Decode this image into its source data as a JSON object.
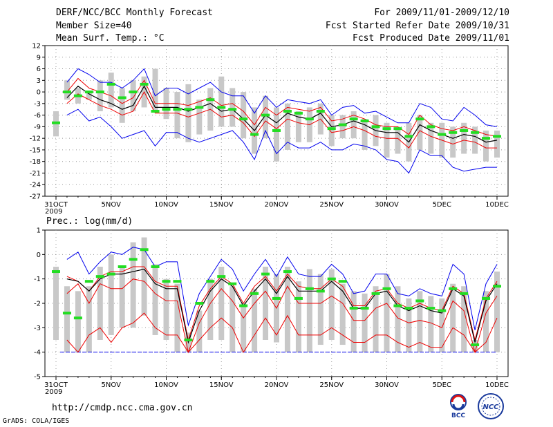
{
  "header": {
    "title": "DERF/NCC/BCC Monthly Forecast",
    "member_size": "Member Size=40",
    "variable": "Mean Surf. Temp.: °C",
    "forecast_period": "For 2009/11/01-2009/12/10",
    "start_date": "Fcst Started Refer Date 2009/10/31",
    "produced_date": "Fcst Produced Date 2009/11/01"
  },
  "footer": {
    "url": "http://cmdp.ncc.cma.gov.cn",
    "credit": "GrADS: COLA/IGES",
    "logo_left_text": "BCC",
    "logo_right_text": "NCC"
  },
  "colors": {
    "spread_bar": "#c8c8c8",
    "envelope": "#0000ee",
    "inner_band": "#ee0000",
    "mean": "#000000",
    "observed": "#22dd22",
    "floor_line": "#0000ee"
  },
  "x_axis": {
    "days": 41,
    "tick_labels": [
      {
        "day": 0,
        "label": "31OCT",
        "sub": "2009"
      },
      {
        "day": 5,
        "label": "5NOV"
      },
      {
        "day": 10,
        "label": "10NOV"
      },
      {
        "day": 15,
        "label": "15NOV"
      },
      {
        "day": 20,
        "label": "20NOV"
      },
      {
        "day": 25,
        "label": "25NOV"
      },
      {
        "day": 30,
        "label": "30NOV"
      },
      {
        "day": 35,
        "label": "5DEC"
      },
      {
        "day": 40,
        "label": "10DEC"
      }
    ]
  },
  "chart_data": [
    {
      "type": "line",
      "title": "Mean Surf. Temp.: °C",
      "ylim": [
        -27,
        12
      ],
      "yticks": [
        12,
        9,
        6,
        3,
        0,
        -3,
        -6,
        -9,
        -12,
        -15,
        -18,
        -21,
        -24,
        -27
      ],
      "x": [
        0,
        1,
        2,
        3,
        4,
        5,
        6,
        7,
        8,
        9,
        10,
        11,
        12,
        13,
        14,
        15,
        16,
        17,
        18,
        19,
        20,
        21,
        22,
        23,
        24,
        25,
        26,
        27,
        28,
        29,
        30,
        31,
        32,
        33,
        34,
        35,
        36,
        37,
        38,
        39,
        40
      ],
      "bar_low": [
        -11.5,
        -2,
        -3,
        -2,
        -5,
        -4,
        -8,
        -5,
        -4,
        -5,
        -7,
        -12,
        -13,
        -11,
        -10,
        -9,
        -9,
        -12,
        -16,
        -12,
        -18,
        -15,
        -13,
        -13,
        -11,
        -14,
        -12,
        -12,
        -15,
        -14,
        -17,
        -16,
        -18,
        -15,
        -16,
        -17,
        -17,
        -16,
        -16,
        -18,
        -17
      ],
      "bar_high": [
        -5,
        3,
        1,
        0,
        3,
        5,
        1,
        3,
        4,
        6,
        1,
        0,
        2,
        -2,
        1,
        4,
        1,
        0,
        -4,
        -1,
        -4,
        -3,
        -5,
        -4,
        -3,
        -6,
        -6,
        -5,
        -7,
        -6,
        -8,
        -9,
        -8,
        -6,
        -8,
        -8,
        -9,
        -8,
        -9,
        -10,
        -10
      ],
      "envelope_high": [
        null,
        2.5,
        6,
        4.5,
        2.5,
        2.5,
        1,
        3,
        6,
        -1,
        1,
        1,
        -0.5,
        1,
        2.5,
        0,
        -1,
        -1,
        -5.5,
        -1,
        -4,
        -2,
        -2.5,
        -3,
        -2,
        -6,
        -4,
        -3.5,
        -5.5,
        -5,
        -6.5,
        -8,
        -8,
        -3,
        -4,
        -7,
        -7.5,
        -4,
        -6,
        -8.5,
        -9
      ],
      "envelope_low": [
        null,
        -6,
        -4.5,
        -7.5,
        -6.5,
        -9,
        -12,
        -11,
        -10,
        -14,
        -10.5,
        -10.5,
        -12,
        -13,
        -12,
        -11,
        -10,
        -13,
        -17.5,
        -10,
        -16,
        -13,
        -14.5,
        -14.5,
        -13,
        -15,
        -15,
        -13.5,
        -14,
        -15,
        -17.5,
        -18,
        -21,
        -15,
        -16.5,
        -16.5,
        -19.5,
        -20.5,
        -20,
        -19.5,
        -19.5
      ],
      "upper_band": [
        null,
        0,
        3.5,
        1,
        0,
        -1,
        -3,
        -1.5,
        3,
        -3,
        -3,
        -3,
        -3.5,
        -2.5,
        -1.5,
        -3.5,
        -3,
        -5,
        -8.5,
        -4,
        -6,
        -4,
        -4.5,
        -5,
        -4,
        -7.5,
        -7,
        -6,
        -7,
        -8.5,
        -9,
        -9,
        -11,
        -6,
        -8.5,
        -9.5,
        -10,
        -9,
        -10,
        -11,
        -11.5
      ],
      "mean": [
        null,
        -1.5,
        1.5,
        -0.5,
        -2,
        -3,
        -4.5,
        -3.5,
        1.5,
        -4,
        -4,
        -4,
        -5,
        -4,
        -3,
        -5,
        -4.5,
        -7,
        -10,
        -6,
        -8,
        -5.5,
        -6.5,
        -7,
        -5.5,
        -9,
        -8.5,
        -7.5,
        -8.5,
        -10,
        -10.5,
        -10.5,
        -13,
        -8.5,
        -10,
        -11,
        -12,
        -11,
        -11.5,
        -13,
        -12.5
      ],
      "lower_band": [
        null,
        -3,
        -0.5,
        -2,
        -3.5,
        -4.5,
        -6,
        -5,
        0,
        -5.5,
        -5.5,
        -5.5,
        -6.5,
        -5.5,
        -4.5,
        -6.5,
        -6,
        -8,
        -11.5,
        -7.5,
        -9.5,
        -7,
        -8,
        -8.5,
        -7,
        -10.5,
        -10,
        -9,
        -10,
        -11.5,
        -12,
        -12,
        -14.5,
        -10,
        -11.5,
        -12.5,
        -13.5,
        -12.5,
        -13,
        -14.5,
        -14.5
      ],
      "observed": [
        -8,
        0,
        -1,
        0,
        0,
        2,
        -1.5,
        0,
        2,
        -5,
        -4.5,
        -4.5,
        -4.5,
        -4,
        -2,
        -4,
        -4.5,
        -7,
        -11,
        -6,
        -10,
        -5,
        -5.5,
        -7,
        -5,
        -9.5,
        -8.5,
        -7,
        -7.5,
        -9,
        -9.5,
        -9.5,
        -11.5,
        -7,
        -9,
        -11,
        -10.5,
        -10,
        -10.5,
        -12,
        -11.5
      ]
    },
    {
      "type": "line",
      "title": "Prec.: log(mm/d)",
      "ylim": [
        -5,
        1
      ],
      "yticks": [
        1,
        0,
        -1,
        -2,
        -3,
        -4,
        -5
      ],
      "floor": -4,
      "x": [
        0,
        1,
        2,
        3,
        4,
        5,
        6,
        7,
        8,
        9,
        10,
        11,
        12,
        13,
        14,
        15,
        16,
        17,
        18,
        19,
        20,
        21,
        22,
        23,
        24,
        25,
        26,
        27,
        28,
        29,
        30,
        31,
        32,
        33,
        34,
        35,
        36,
        37,
        38,
        39,
        40
      ],
      "bar_low": [
        -3.5,
        -4,
        -4,
        -4,
        -3.5,
        -3.3,
        -3,
        -3,
        -2.5,
        -3.3,
        -3.5,
        -4,
        -4,
        -4,
        -3.5,
        -3.5,
        -4,
        -4,
        -4,
        -3.5,
        -3.6,
        -4,
        -4,
        -4,
        -3.7,
        -3.5,
        -3.7,
        -4,
        -4,
        -4,
        -4,
        -4,
        -4,
        -4,
        -4,
        -4,
        -4,
        -4,
        -4,
        -4,
        -4
      ],
      "bar_high": [
        -0.5,
        -1.3,
        -1.5,
        -1.3,
        -0.5,
        0,
        -0.5,
        0.5,
        0.7,
        -0.4,
        -1,
        -1.2,
        -3.2,
        -2.3,
        -1,
        -0.5,
        -1.3,
        -2,
        -1.4,
        -0.5,
        -0.8,
        -0.5,
        -1.1,
        -0.6,
        -0.8,
        -0.6,
        -1.2,
        -1.5,
        -1.6,
        -1.3,
        -0.8,
        -1.3,
        -1.8,
        -1.5,
        -1.7,
        -1.8,
        -1.2,
        -1.3,
        -3.5,
        -1.5,
        -0.7
      ],
      "envelope_high": [
        null,
        -0.2,
        0.1,
        -0.8,
        -0.3,
        0.1,
        0,
        0.3,
        0.2,
        -0.5,
        -0.3,
        -0.3,
        -2.9,
        -1.6,
        -0.9,
        -0.2,
        -0.6,
        -1.5,
        -0.8,
        -0.2,
        -0.9,
        -0.1,
        -0.8,
        -0.9,
        -0.9,
        -0.4,
        -0.8,
        -1.6,
        -1.5,
        -0.8,
        -0.8,
        -1.6,
        -1.7,
        -1.4,
        -1.6,
        -1.7,
        -0.4,
        -0.8,
        -3.1,
        -1.2,
        -0.4
      ],
      "envelope_low": [
        null,
        -4,
        -4,
        -4,
        -4,
        -4,
        -4,
        -4,
        -4,
        -4,
        -4,
        -4,
        -4,
        -4,
        -4,
        -4,
        -4,
        -4,
        -4,
        -4,
        -4,
        -4,
        -4,
        -4,
        -4,
        -4,
        -4,
        -4,
        -4,
        -4,
        -4,
        -4,
        -4,
        -4,
        -4,
        -4,
        -4,
        -4,
        -4,
        -4,
        -4
      ],
      "upper_band": [
        null,
        -0.9,
        -1.1,
        -1.5,
        -0.9,
        -0.7,
        -0.7,
        -0.5,
        -0.5,
        -1.1,
        -1.3,
        -1.3,
        -3.5,
        -2.1,
        -1.4,
        -0.9,
        -1.2,
        -2,
        -1.3,
        -0.9,
        -1.5,
        -0.8,
        -1.3,
        -1.4,
        -1.4,
        -1,
        -1.3,
        -2.1,
        -2.1,
        -1.5,
        -1.4,
        -2,
        -2.2,
        -2,
        -2.2,
        -2.3,
        -1.3,
        -1.6,
        -3.5,
        -1.8,
        -1.1
      ],
      "mean": [
        null,
        -1,
        -1.1,
        -1.5,
        -1,
        -0.8,
        -0.8,
        -0.7,
        -0.6,
        -1.2,
        -1.4,
        -1.4,
        -3.6,
        -2.3,
        -1.5,
        -1,
        -1.3,
        -2.1,
        -1.5,
        -1,
        -1.6,
        -0.9,
        -1.5,
        -1.5,
        -1.5,
        -1.1,
        -1.5,
        -2.2,
        -2.2,
        -1.6,
        -1.5,
        -2.1,
        -2.3,
        -2.1,
        -2.3,
        -2.4,
        -1.4,
        -1.7,
        -3.6,
        -1.9,
        -1.2
      ],
      "lower_band": [
        null,
        -1.6,
        -1.2,
        -2,
        -1.2,
        -1.4,
        -1.4,
        -1,
        -1.1,
        -1.6,
        -1.9,
        -1.9,
        -4,
        -2.8,
        -2,
        -1.4,
        -1.9,
        -2.6,
        -2,
        -1.5,
        -2.2,
        -1.3,
        -2,
        -2,
        -2,
        -1.7,
        -2,
        -2.7,
        -2.7,
        -2.2,
        -2,
        -2.6,
        -2.8,
        -2.7,
        -2.8,
        -3,
        -1.9,
        -2.3,
        -4,
        -2.4,
        -1.7
      ],
      "lowest_band": [
        null,
        -3.5,
        -4,
        -3.3,
        -3,
        -3.6,
        -3,
        -2.8,
        -2.4,
        -3,
        -3.3,
        -3.3,
        -4,
        -3.5,
        -3,
        -2.6,
        -3,
        -4,
        -3.3,
        -2.6,
        -3.3,
        -2.5,
        -3.3,
        -3.3,
        -3.3,
        -3,
        -3.3,
        -3.6,
        -3.6,
        -3.3,
        -3.3,
        -3.6,
        -3.8,
        -3.6,
        -3.8,
        -3.8,
        -3,
        -3.3,
        -4,
        -3.6,
        -2.6
      ],
      "observed": [
        -0.7,
        -2.4,
        -2.6,
        -1.1,
        -0.9,
        -0.8,
        -0.5,
        -0.2,
        0.2,
        -0.5,
        -1.1,
        -1.1,
        -3.5,
        -2,
        -1.1,
        -0.9,
        -1.2,
        -2.1,
        -1.6,
        -0.8,
        -1.8,
        -0.7,
        -1.8,
        -1.4,
        -1.5,
        -1,
        -1.1,
        -2.2,
        -2.2,
        -1.6,
        -1.4,
        -2.1,
        -2.2,
        -1.9,
        -2.2,
        -2.3,
        -1.4,
        -1.6,
        -3.7,
        -1.8,
        -1.3
      ]
    }
  ]
}
